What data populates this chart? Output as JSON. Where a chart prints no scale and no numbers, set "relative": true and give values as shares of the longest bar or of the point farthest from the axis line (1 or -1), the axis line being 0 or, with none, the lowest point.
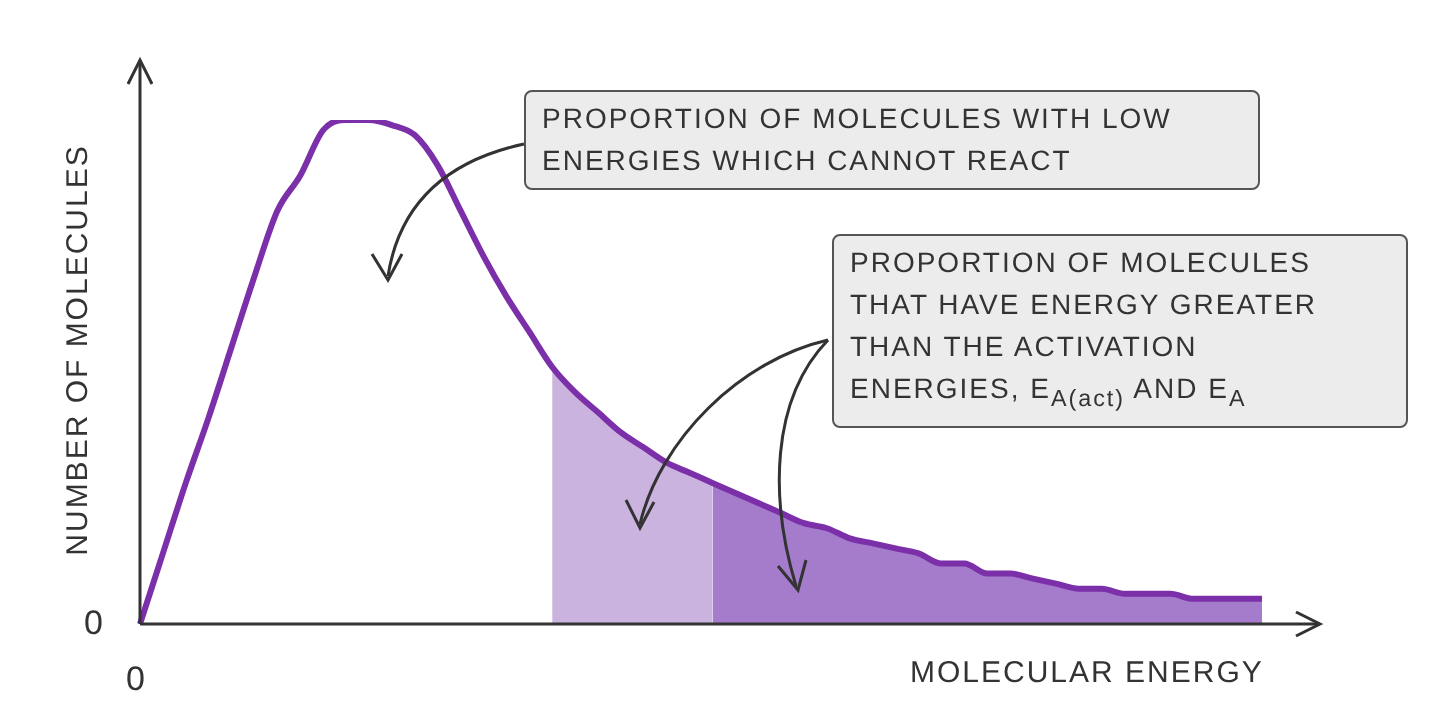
{
  "chart_data": {
    "type": "line",
    "relative": true,
    "xlabel": "MOLECULAR ENERGY",
    "ylabel": "NUMBER OF MOLECULES",
    "categories": [
      null,
      null,
      null,
      null,
      null,
      null,
      null,
      null,
      null,
      null,
      null,
      null,
      null,
      null,
      null,
      null,
      null,
      null,
      null,
      null,
      null,
      null,
      null,
      null,
      null,
      null,
      null,
      null,
      null,
      null,
      null,
      null,
      null,
      null,
      null,
      null,
      null,
      null,
      null,
      null,
      null,
      null,
      null,
      null,
      null,
      null,
      null,
      null,
      null,
      null
    ],
    "series": [
      {
        "color": "#7b2fa8",
        "values": [
          0,
          0.14,
          0.28,
          0.41,
          0.55,
          0.69,
          0.82,
          0.89,
          0.98,
          1,
          1,
          0.99,
          0.97,
          0.91,
          0.82,
          0.73,
          0.65,
          0.58,
          0.51,
          0.46,
          0.42,
          0.38,
          0.35,
          0.32,
          0.3,
          0.28,
          0.26,
          0.24,
          0.22,
          0.2,
          0.19,
          0.17,
          0.16,
          0.15,
          0.14,
          0.12,
          0.12,
          0.1,
          0.1,
          0.09,
          0.08,
          0.07,
          0.07,
          0.06,
          0.06,
          0.06,
          0.05,
          0.05,
          0.05,
          0.05
        ]
      },
      {
        "type": "area",
        "color": "#cbb3df",
        "values": [
          null,
          null,
          null,
          null,
          null,
          null,
          null,
          null,
          null,
          null,
          null,
          null,
          null,
          null,
          null,
          null,
          null,
          null,
          0.51,
          0.46,
          0.42,
          0.38,
          0.35,
          0.32,
          0.3,
          0.28,
          null,
          null,
          null,
          null,
          null,
          null,
          null,
          null,
          null,
          null,
          null,
          null,
          null,
          null,
          null,
          null,
          null,
          null,
          null,
          null,
          null,
          null,
          null,
          null
        ]
      },
      {
        "type": "area",
        "color": "#a57ccb",
        "values": [
          null,
          null,
          null,
          null,
          null,
          null,
          null,
          null,
          null,
          null,
          null,
          null,
          null,
          null,
          null,
          null,
          null,
          null,
          null,
          null,
          null,
          null,
          null,
          null,
          null,
          0.28,
          0.26,
          0.24,
          0.22,
          0.2,
          0.19,
          0.17,
          0.16,
          0.15,
          0.14,
          0.12,
          0.12,
          0.1,
          0.1,
          0.09,
          0.08,
          0.07,
          0.07,
          0.06,
          0.06,
          0.06,
          0.05,
          0.05,
          0.05,
          0.05
        ]
      }
    ],
    "annotations": [
      "PROPORTION OF MOLECULES WITH LOW ENERGIES WHICH CANNOT REACT",
      "PROPORTION OF MOLECULES THAT HAVE ENERGY GREATER THAN THE ACTIVATION ENERGIES, E$_{A(act)}$ AND E$_{A}$",
      "0",
      "0"
    ]
  }
}
